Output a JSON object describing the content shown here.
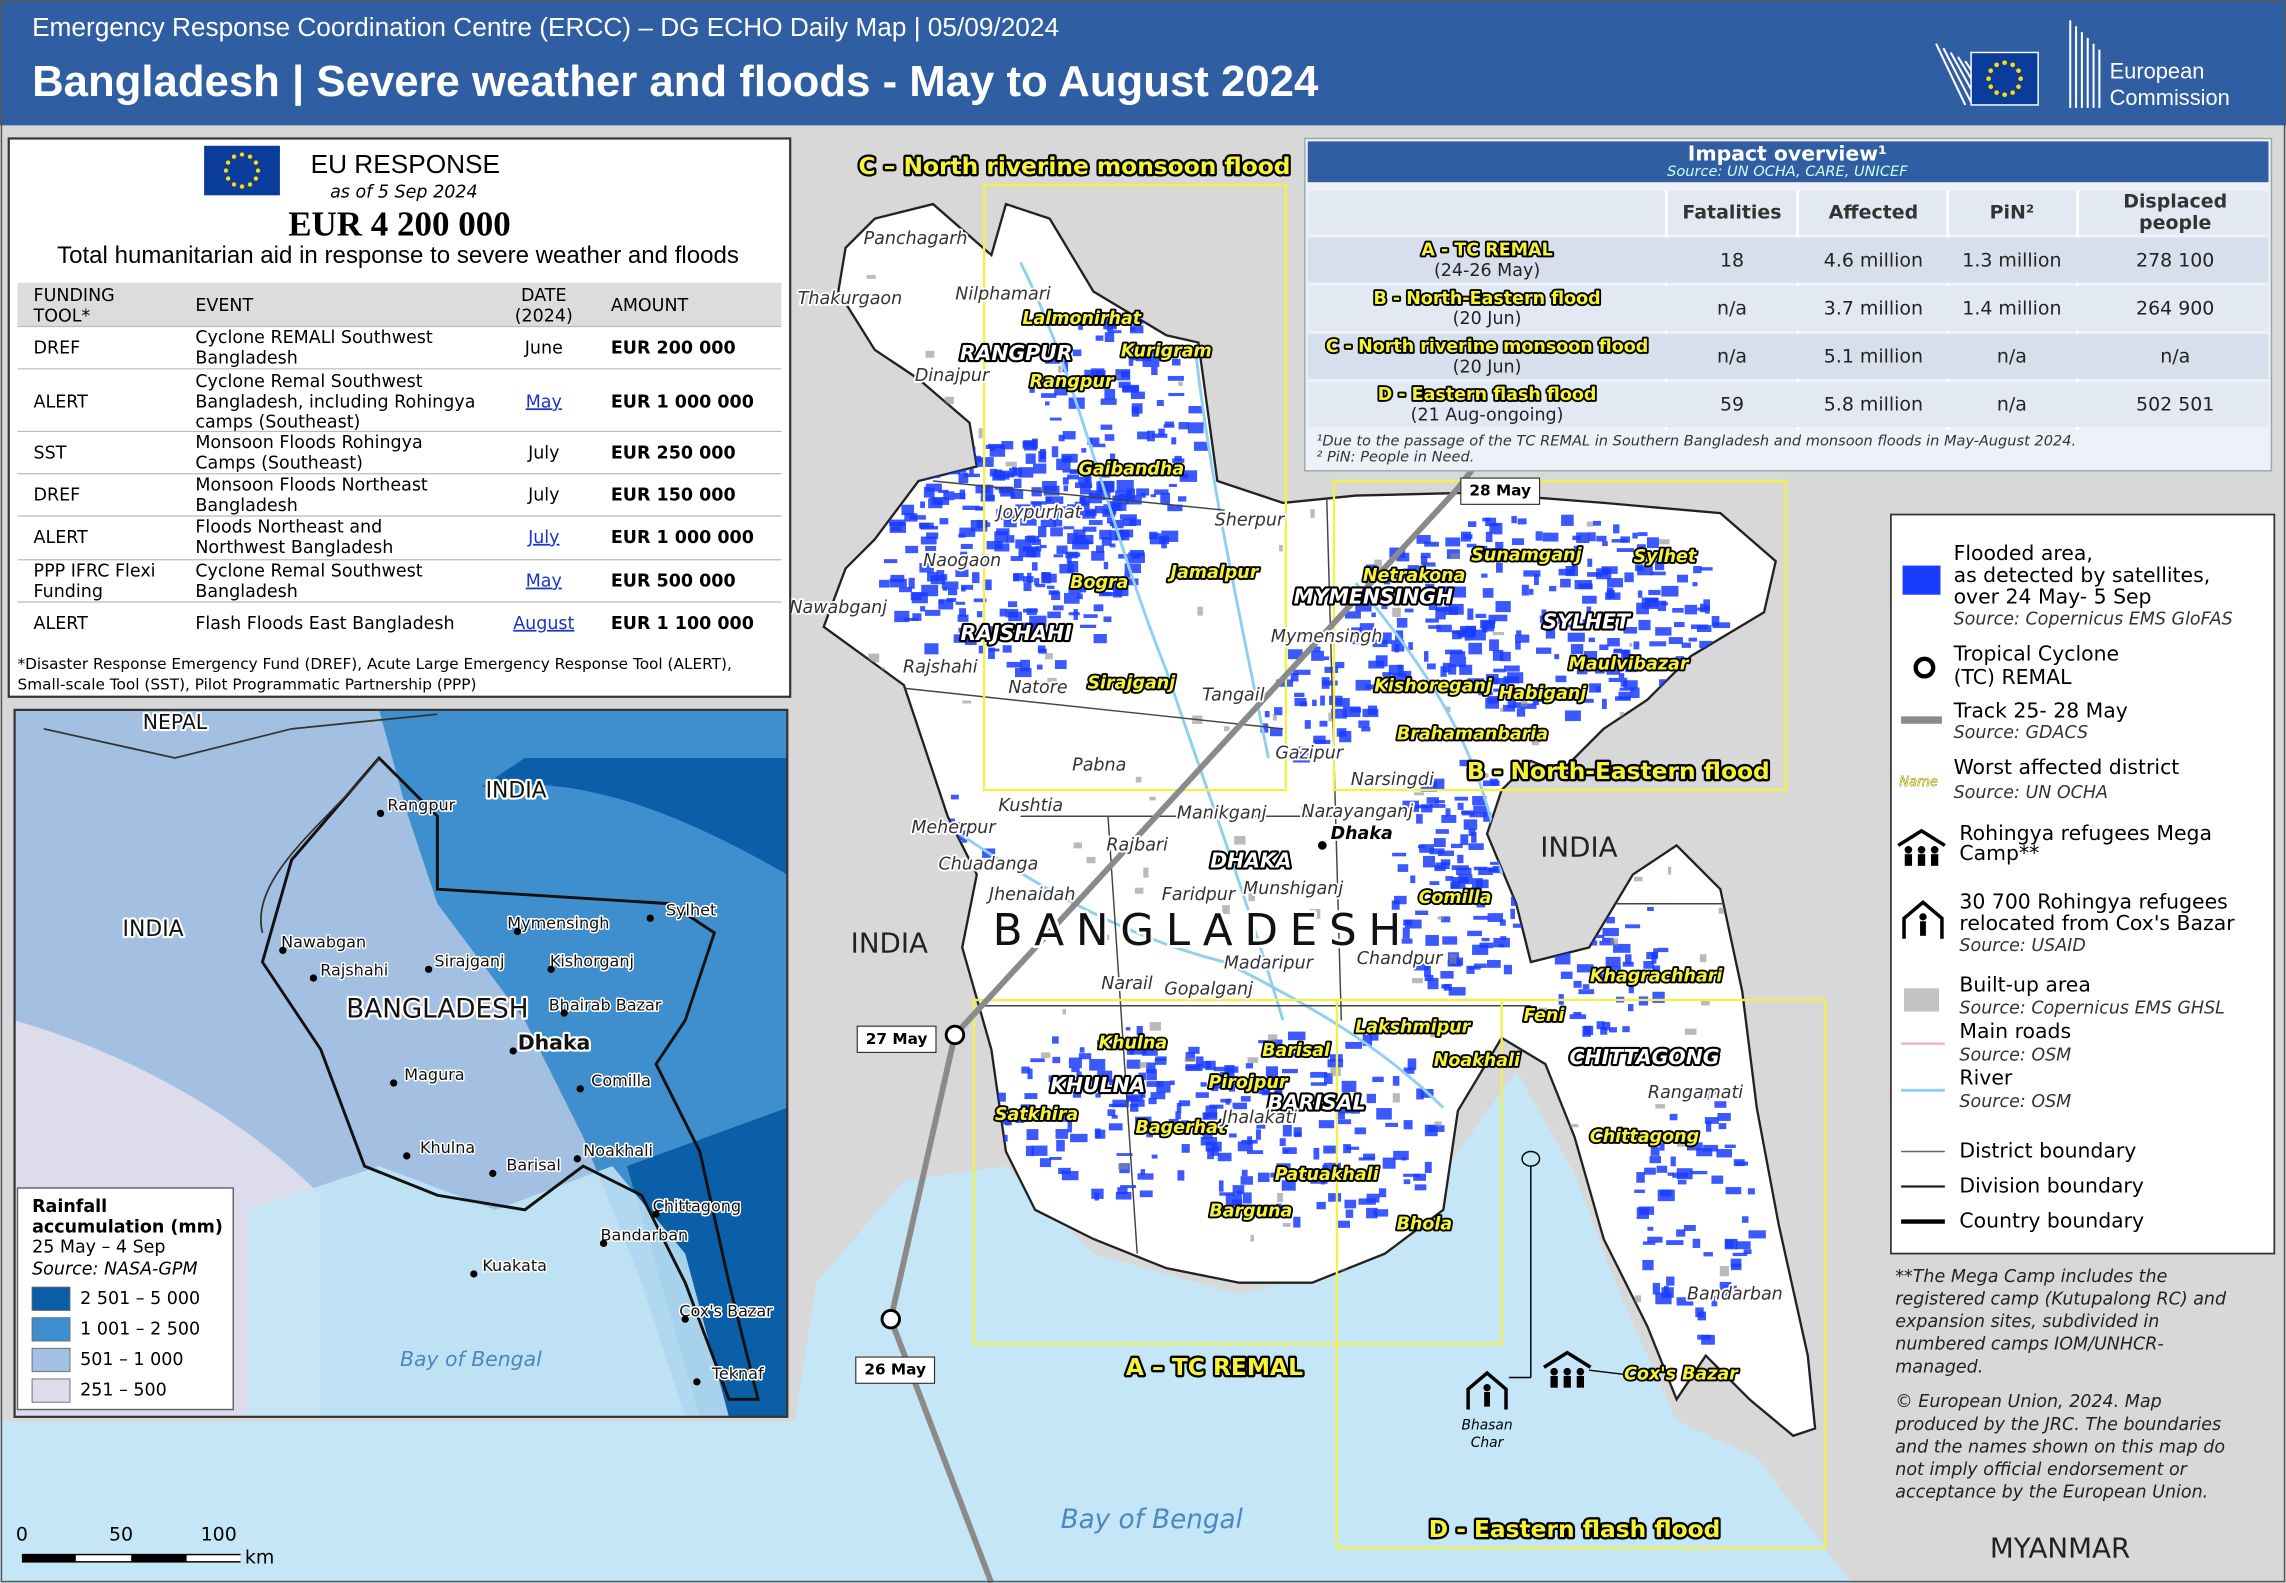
{
  "header": {
    "subtitle": "Emergency Response Coordination Centre (ERCC) – DG ECHO Daily Map | 05/09/2024",
    "title": "Bangladesh | Severe weather and floods - May to August 2024",
    "logo": [
      "European",
      "Commission"
    ]
  },
  "eu_response": {
    "title": "EU RESPONSE",
    "date": "as of 5 Sep 2024",
    "total": "EUR 4 200 000",
    "caption": "Total humanitarian aid in response to severe weather and floods",
    "columns": [
      [
        "FUNDING",
        "TOOL*"
      ],
      "EVENT",
      [
        "DATE",
        "(2024)"
      ],
      "AMOUNT"
    ],
    "rows": [
      [
        "DREF",
        [
          "Cyclone REMALl Southwest",
          "Bangladesh"
        ],
        "June",
        "EUR 200 000"
      ],
      [
        "ALERT",
        [
          "Cyclone Remal Southwest",
          "Bangladesh, including Rohingya",
          "camps (Southeast)"
        ],
        "May",
        "EUR 1 000 000"
      ],
      [
        "SST",
        [
          "Monsoon Floods Rohingya",
          "Camps (Southeast)"
        ],
        "July",
        "EUR 250 000"
      ],
      [
        "DREF",
        [
          "Monsoon Floods Northeast",
          "Bangladesh"
        ],
        "July",
        "EUR 150 000"
      ],
      [
        "ALERT",
        [
          "Floods Northeast and",
          "Northwest Bangladesh"
        ],
        "July",
        "EUR 1 000 000"
      ],
      [
        [
          "PPP IFRC Flexi",
          "Funding"
        ],
        [
          "Cyclone Remal Southwest",
          "Bangladesh"
        ],
        "May",
        "EUR 500 000"
      ],
      [
        "ALERT",
        "Flash Floods East Bangladesh",
        "August",
        "EUR 1 100 000"
      ]
    ],
    "footnote": [
      "*Disaster Response Emergency Fund (DREF), Acute Large Emergency Response Tool (ALERT),",
      "Small-scale Tool (SST), Pilot Programmatic Partnership (PPP)"
    ]
  },
  "impact": {
    "title": "Impact overview¹",
    "source": "Source: UN OCHA, CARE, UNICEF",
    "columns": [
      "Fatalities",
      "Affected",
      "PiN²",
      [
        "Displaced",
        "people"
      ]
    ],
    "rows": [
      {
        "event": "A - TC REMAL",
        "period": "(24-26 May)",
        "values": [
          "18",
          "4.6 million",
          "1.3 million",
          "278 100"
        ]
      },
      {
        "event": "B - North-Eastern flood",
        "period": "(20 Jun)",
        "values": [
          "n/a",
          "3.7 million",
          "1.4 million",
          "264 900"
        ]
      },
      {
        "event": "C - North riverine monsoon flood",
        "period": "(20 Jun)",
        "values": [
          "n/a",
          "5.1 million",
          "n/a",
          "n/a"
        ]
      },
      {
        "event": "D - Eastern flash flood",
        "period": "(21 Aug-ongoing)",
        "values": [
          "59",
          "5.8 million",
          "n/a",
          "502 501"
        ]
      }
    ],
    "footnotes": [
      "¹Due to the passage of the TC REMAL in Southern Bangladesh and monsoon floods in May-August 2024.",
      "² PiN: People in Need."
    ]
  },
  "legend": {
    "flooded": {
      "label": [
        "Flooded area,",
        "as detected by satellites,",
        "over 24 May- 5 Sep"
      ],
      "source": "Source: Copernicus EMS GloFAS"
    },
    "cyclone": {
      "label": [
        "Tropical Cyclone",
        "(TC) REMAL"
      ]
    },
    "track": {
      "label": "Track 25- 28 May",
      "source": "Source: GDACS"
    },
    "worst": {
      "sample": "Name",
      "label": "Worst affected district",
      "source": "Source: UN OCHA"
    },
    "mega_camp": {
      "label": [
        "Rohingya refugees Mega",
        "Camp**"
      ]
    },
    "relocated": {
      "label": [
        "30 700 Rohingya refugees",
        "relocated from Cox's Bazar"
      ],
      "source": "Source: USAID"
    },
    "built_up": {
      "label": "Built-up area",
      "source": "Source: Copernicus EMS GHSL"
    },
    "roads": {
      "label": "Main roads",
      "source": "Source: OSM"
    },
    "river": {
      "label": "River",
      "source": "Source: OSM"
    },
    "district": {
      "label": "District boundary"
    },
    "division": {
      "label": "Division boundary"
    },
    "country": {
      "label": "Country boundary"
    }
  },
  "notes": {
    "mega_camp": [
      "**The Mega Camp includes the",
      "registered camp (Kutupalong RC) and",
      "expansion sites, subdivided in",
      "numbered camps IOM/UNHCR-",
      "managed."
    ],
    "copyright": [
      "© European Union, 2024. Map",
      "produced by the JRC. The boundaries",
      "and the names shown on this map do",
      "not imply official endorsement or",
      "acceptance by the European Union."
    ]
  },
  "main_map": {
    "areas": [
      "C – North riverine monsoon flood",
      "B - North-Eastern flood",
      "A – TC REMAL",
      "D - Eastern flash flood"
    ],
    "countries": [
      "BANGLADESH",
      "INDIA",
      "INDIA",
      "MYANMAR",
      "Bay of Bengal"
    ],
    "divisions": [
      "RANGPUR",
      "RAJSHAHI",
      "MYMENSINGH",
      "SYLHET",
      "DHAKA",
      "KHULNA",
      "BARISAL",
      "CHITTAGONG"
    ],
    "affected_districts": [
      "Lalmonirhat",
      "Kurigram",
      "Rangpur",
      "Gaibandha",
      "Bogra",
      "Jamalpur",
      "Sirajganj",
      "Netrakona",
      "Sunamganj",
      "Sylhet",
      "Maulvibazar",
      "Habiganj",
      "Kishoreganj",
      "Brahamanbaria",
      "Comilla",
      "Khagrachhari",
      "Feni",
      "Lakshmipur",
      "Noakhali",
      "Chittagong",
      "Cox's Bazar",
      "Khulna",
      "Satkhira",
      "Bagerhat",
      "Pirojpur",
      "Barisal",
      "Patuakhali",
      "Barguna",
      "Bhola"
    ],
    "districts": [
      "Panchagarh",
      "Thakurgaon",
      "Nilphamari",
      "Dinajpur",
      "Joypurhat",
      "Naogaon",
      "Nawabganj",
      "Rajshahi",
      "Natore",
      "Pabna",
      "Kushtia",
      "Meherpur",
      "Chuadanga",
      "Jhenaidah",
      "Rajbari",
      "Manikganj",
      "Faridpur",
      "Munshiganj",
      "Narayanganj",
      "Narsingdi",
      "Gazipur",
      "Tangail",
      "Mymensingh",
      "Sherpur",
      "Madaripur",
      "Chandpur",
      "Gopalganj",
      "Narail",
      "Jhalakati",
      "Rangamati",
      "Bandarban",
      "Dhaka"
    ],
    "camp_label": [
      "Bhasan",
      "Char"
    ],
    "track_labels": [
      "28 May",
      "27 May",
      "26 May"
    ],
    "scale": [
      0,
      50,
      100,
      "km"
    ]
  },
  "inset_map": {
    "labels": [
      "NEPAL",
      "INDIA",
      "INDIA",
      "BANGLADESH",
      "Dhaka",
      "Rangpur",
      "Nawabgan",
      "Rajshahi",
      "Sirajganj",
      "Mymensingh",
      "Sylhet",
      "Kishorganj",
      "Bhairab Bazar",
      "Magura",
      "Comilla",
      "Khulna",
      "Barisal",
      "Noakhali",
      "Chittagong",
      "Bandarban",
      "Kuakata",
      "Cox's Bazar",
      "Teknaf",
      "Bay of Bengal"
    ],
    "legend": {
      "title": [
        "Rainfall",
        "accumulation (mm)"
      ],
      "period": "25 May – 4 Sep",
      "source": "Source: NASA-GPM",
      "classes": [
        {
          "label": "2 501 – 5 000",
          "color": "#0b5ea8"
        },
        {
          "label": "1 001 – 2 500",
          "color": "#3f8fcf"
        },
        {
          "label": "501 – 1 000",
          "color": "#a3bfe2"
        },
        {
          "label": "251 – 500",
          "color": "#dcdced"
        }
      ]
    }
  }
}
